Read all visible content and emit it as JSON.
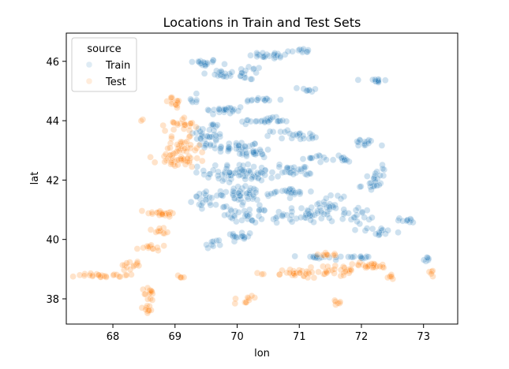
{
  "chart_data": {
    "type": "scatter",
    "title": "Locations in Train and Test Sets",
    "xlabel": "lon",
    "ylabel": "lat",
    "xlim": [
      67.25,
      73.55
    ],
    "ylim": [
      37.15,
      46.95
    ],
    "xticks": [
      68,
      69,
      70,
      71,
      72,
      73
    ],
    "yticks": [
      38,
      40,
      42,
      44,
      46
    ],
    "grid": false,
    "legend": {
      "title": "source",
      "placement": "top-left"
    },
    "colors": {
      "Train": "#1f77b4",
      "Test": "#ff7f0e"
    },
    "series": [
      {
        "name": "Train",
        "clusters": [
          {
            "lon": 69.45,
            "lat": 45.95,
            "spread": [
              0.25,
              0.12
            ],
            "n": 18
          },
          {
            "lon": 69.75,
            "lat": 45.55,
            "spread": [
              0.3,
              0.18
            ],
            "n": 16
          },
          {
            "lon": 70.2,
            "lat": 45.6,
            "spread": [
              0.2,
              0.25
            ],
            "n": 16
          },
          {
            "lon": 70.55,
            "lat": 46.2,
            "spread": [
              0.35,
              0.12
            ],
            "n": 22
          },
          {
            "lon": 71.0,
            "lat": 46.35,
            "spread": [
              0.2,
              0.08
            ],
            "n": 10
          },
          {
            "lon": 71.15,
            "lat": 45.05,
            "spread": [
              0.15,
              0.08
            ],
            "n": 8
          },
          {
            "lon": 72.25,
            "lat": 45.35,
            "spread": [
              0.15,
              0.1
            ],
            "n": 12
          },
          {
            "lon": 70.35,
            "lat": 44.7,
            "spread": [
              0.3,
              0.08
            ],
            "n": 14
          },
          {
            "lon": 69.8,
            "lat": 44.35,
            "spread": [
              0.35,
              0.15
            ],
            "n": 24
          },
          {
            "lon": 69.55,
            "lat": 43.5,
            "spread": [
              0.25,
              0.5
            ],
            "n": 40
          },
          {
            "lon": 70.0,
            "lat": 43.1,
            "spread": [
              0.35,
              0.2
            ],
            "n": 30
          },
          {
            "lon": 70.45,
            "lat": 44.0,
            "spread": [
              0.4,
              0.1
            ],
            "n": 26
          },
          {
            "lon": 70.8,
            "lat": 43.55,
            "spread": [
              0.25,
              0.15
            ],
            "n": 14
          },
          {
            "lon": 71.05,
            "lat": 43.45,
            "spread": [
              0.18,
              0.1
            ],
            "n": 10
          },
          {
            "lon": 70.3,
            "lat": 42.9,
            "spread": [
              0.25,
              0.25
            ],
            "n": 20
          },
          {
            "lon": 70.1,
            "lat": 42.25,
            "spread": [
              0.6,
              0.28
            ],
            "n": 70
          },
          {
            "lon": 70.9,
            "lat": 42.3,
            "spread": [
              0.3,
              0.2
            ],
            "n": 24
          },
          {
            "lon": 71.25,
            "lat": 42.75,
            "spread": [
              0.2,
              0.1
            ],
            "n": 10
          },
          {
            "lon": 71.65,
            "lat": 42.7,
            "spread": [
              0.25,
              0.1
            ],
            "n": 12
          },
          {
            "lon": 72.05,
            "lat": 43.25,
            "spread": [
              0.2,
              0.15
            ],
            "n": 14
          },
          {
            "lon": 72.25,
            "lat": 42.2,
            "spread": [
              0.15,
              0.35
            ],
            "n": 14
          },
          {
            "lon": 72.2,
            "lat": 41.8,
            "spread": [
              0.2,
              0.15
            ],
            "n": 12
          },
          {
            "lon": 69.55,
            "lat": 41.35,
            "spread": [
              0.25,
              0.25
            ],
            "n": 26
          },
          {
            "lon": 70.15,
            "lat": 41.5,
            "spread": [
              0.4,
              0.3
            ],
            "n": 36
          },
          {
            "lon": 70.85,
            "lat": 41.6,
            "spread": [
              0.35,
              0.15
            ],
            "n": 24
          },
          {
            "lon": 70.2,
            "lat": 40.85,
            "spread": [
              0.45,
              0.3
            ],
            "n": 40
          },
          {
            "lon": 71.0,
            "lat": 40.8,
            "spread": [
              0.35,
              0.25
            ],
            "n": 26
          },
          {
            "lon": 71.5,
            "lat": 41.1,
            "spread": [
              0.3,
              0.5
            ],
            "n": 34
          },
          {
            "lon": 71.95,
            "lat": 40.8,
            "spread": [
              0.2,
              0.25
            ],
            "n": 16
          },
          {
            "lon": 72.3,
            "lat": 40.25,
            "spread": [
              0.2,
              0.15
            ],
            "n": 14
          },
          {
            "lon": 72.75,
            "lat": 40.65,
            "spread": [
              0.15,
              0.08
            ],
            "n": 10
          },
          {
            "lon": 69.6,
            "lat": 39.8,
            "spread": [
              0.1,
              0.2
            ],
            "n": 8
          },
          {
            "lon": 69.95,
            "lat": 40.05,
            "spread": [
              0.25,
              0.2
            ],
            "n": 18
          },
          {
            "lon": 71.35,
            "lat": 39.4,
            "spread": [
              0.35,
              0.06
            ],
            "n": 16
          },
          {
            "lon": 71.95,
            "lat": 39.4,
            "spread": [
              0.3,
              0.06
            ],
            "n": 12
          },
          {
            "lon": 73.05,
            "lat": 39.3,
            "spread": [
              0.1,
              0.12
            ],
            "n": 6
          },
          {
            "lon": 69.3,
            "lat": 44.75,
            "spread": [
              0.12,
              0.15
            ],
            "n": 6
          }
        ]
      },
      {
        "name": "Test",
        "clusters": [
          {
            "lon": 69.0,
            "lat": 44.6,
            "spread": [
              0.2,
              0.2
            ],
            "n": 14
          },
          {
            "lon": 68.5,
            "lat": 44.05,
            "spread": [
              0.05,
              0.05
            ],
            "n": 2
          },
          {
            "lon": 69.1,
            "lat": 43.9,
            "spread": [
              0.25,
              0.25
            ],
            "n": 22
          },
          {
            "lon": 69.1,
            "lat": 43.05,
            "spread": [
              0.3,
              0.35
            ],
            "n": 34
          },
          {
            "lon": 69.05,
            "lat": 42.65,
            "spread": [
              0.35,
              0.25
            ],
            "n": 34
          },
          {
            "lon": 68.75,
            "lat": 40.9,
            "spread": [
              0.35,
              0.1
            ],
            "n": 22
          },
          {
            "lon": 68.75,
            "lat": 40.25,
            "spread": [
              0.15,
              0.15
            ],
            "n": 10
          },
          {
            "lon": 68.6,
            "lat": 39.75,
            "spread": [
              0.2,
              0.12
            ],
            "n": 12
          },
          {
            "lon": 67.85,
            "lat": 38.8,
            "spread": [
              0.4,
              0.1
            ],
            "n": 26
          },
          {
            "lon": 68.35,
            "lat": 39.15,
            "spread": [
              0.2,
              0.15
            ],
            "n": 12
          },
          {
            "lon": 68.6,
            "lat": 38.15,
            "spread": [
              0.1,
              0.25
            ],
            "n": 14
          },
          {
            "lon": 68.55,
            "lat": 37.65,
            "spread": [
              0.1,
              0.15
            ],
            "n": 10
          },
          {
            "lon": 69.1,
            "lat": 38.75,
            "spread": [
              0.08,
              0.08
            ],
            "n": 5
          },
          {
            "lon": 70.15,
            "lat": 38.0,
            "spread": [
              0.2,
              0.2
            ],
            "n": 10
          },
          {
            "lon": 70.95,
            "lat": 38.85,
            "spread": [
              0.4,
              0.15
            ],
            "n": 30
          },
          {
            "lon": 71.6,
            "lat": 38.95,
            "spread": [
              0.35,
              0.2
            ],
            "n": 26
          },
          {
            "lon": 72.15,
            "lat": 39.1,
            "spread": [
              0.3,
              0.12
            ],
            "n": 24
          },
          {
            "lon": 72.45,
            "lat": 38.75,
            "spread": [
              0.1,
              0.1
            ],
            "n": 6
          },
          {
            "lon": 71.6,
            "lat": 37.85,
            "spread": [
              0.12,
              0.1
            ],
            "n": 6
          },
          {
            "lon": 73.15,
            "lat": 38.85,
            "spread": [
              0.08,
              0.15
            ],
            "n": 5
          },
          {
            "lon": 71.5,
            "lat": 39.5,
            "spread": [
              0.25,
              0.05
            ],
            "n": 10
          }
        ]
      }
    ]
  }
}
